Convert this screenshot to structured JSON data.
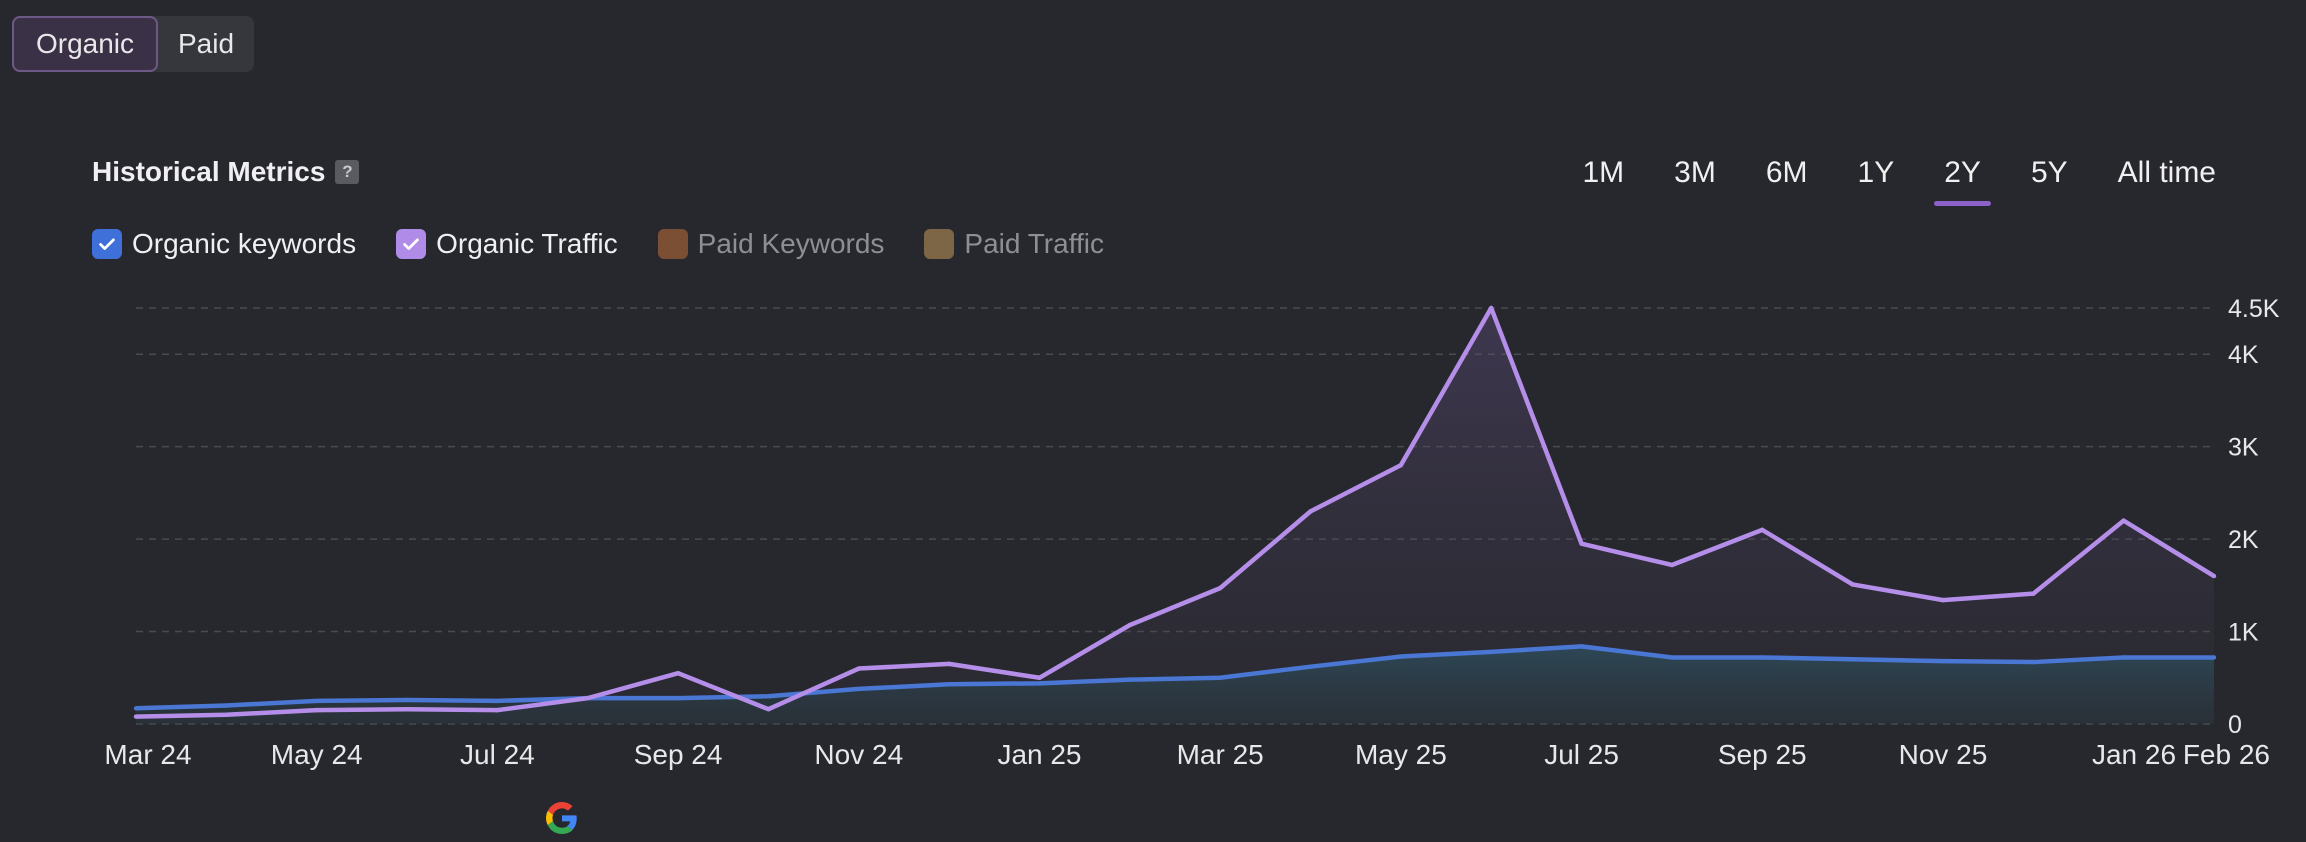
{
  "toggle": {
    "organic_label": "Organic",
    "paid_label": "Paid"
  },
  "header": {
    "title": "Historical Metrics",
    "help": "?"
  },
  "ranges": [
    "1M",
    "3M",
    "6M",
    "1Y",
    "2Y",
    "5Y",
    "All time"
  ],
  "active_range": "2Y",
  "legend": [
    {
      "label": "Organic keywords",
      "color": "#3f6fd8",
      "checked": true
    },
    {
      "label": "Organic Traffic",
      "color": "#b08ce8",
      "checked": true
    },
    {
      "label": "Paid Keywords",
      "color": "#7a4f33",
      "checked": false
    },
    {
      "label": "Paid Traffic",
      "color": "#7c6646",
      "checked": false
    }
  ],
  "colors": {
    "keywords": "#4a76d4",
    "traffic": "#b48ee8",
    "grid": "#4a4b50",
    "active_tab": "#8c62c9"
  },
  "chart_data": {
    "type": "line",
    "x": [
      "Mar 24",
      "Apr 24",
      "May 24",
      "Jun 24",
      "Jul 24",
      "Aug 24",
      "Sep 24",
      "Oct 24",
      "Nov 24",
      "Dec 24",
      "Jan 25",
      "Feb 25",
      "Mar 25",
      "Apr 25",
      "May 25",
      "Jun 25",
      "Jul 25",
      "Aug 25",
      "Sep 25",
      "Oct 25",
      "Nov 25",
      "Dec 25",
      "Jan 26",
      "Feb 26"
    ],
    "x_tick_labels": [
      "Mar 24",
      "May 24",
      "Jul 24",
      "Sep 24",
      "Nov 24",
      "Jan 25",
      "Mar 25",
      "May 25",
      "Jul 25",
      "Sep 25",
      "Nov 25",
      "Jan 26",
      "Feb 26"
    ],
    "series": [
      {
        "name": "Organic keywords",
        "values": [
          170,
          200,
          250,
          260,
          250,
          280,
          280,
          300,
          380,
          430,
          440,
          480,
          500,
          620,
          730,
          780,
          840,
          720,
          720,
          700,
          680,
          670,
          720,
          720
        ]
      },
      {
        "name": "Organic Traffic",
        "values": [
          80,
          100,
          150,
          160,
          150,
          280,
          550,
          160,
          600,
          650,
          500,
          1070,
          1470,
          2300,
          2800,
          4500,
          1950,
          1720,
          2100,
          1510,
          1340,
          1410,
          2200,
          1600
        ]
      }
    ],
    "ylim": [
      0,
      4500
    ],
    "y_ticks": [
      0,
      1000,
      2000,
      3000,
      4000,
      4500
    ],
    "y_tick_labels": [
      "0",
      "1K",
      "2K",
      "3K",
      "4K",
      "4.5K"
    ],
    "grid": true,
    "legend_position": "top-left"
  }
}
